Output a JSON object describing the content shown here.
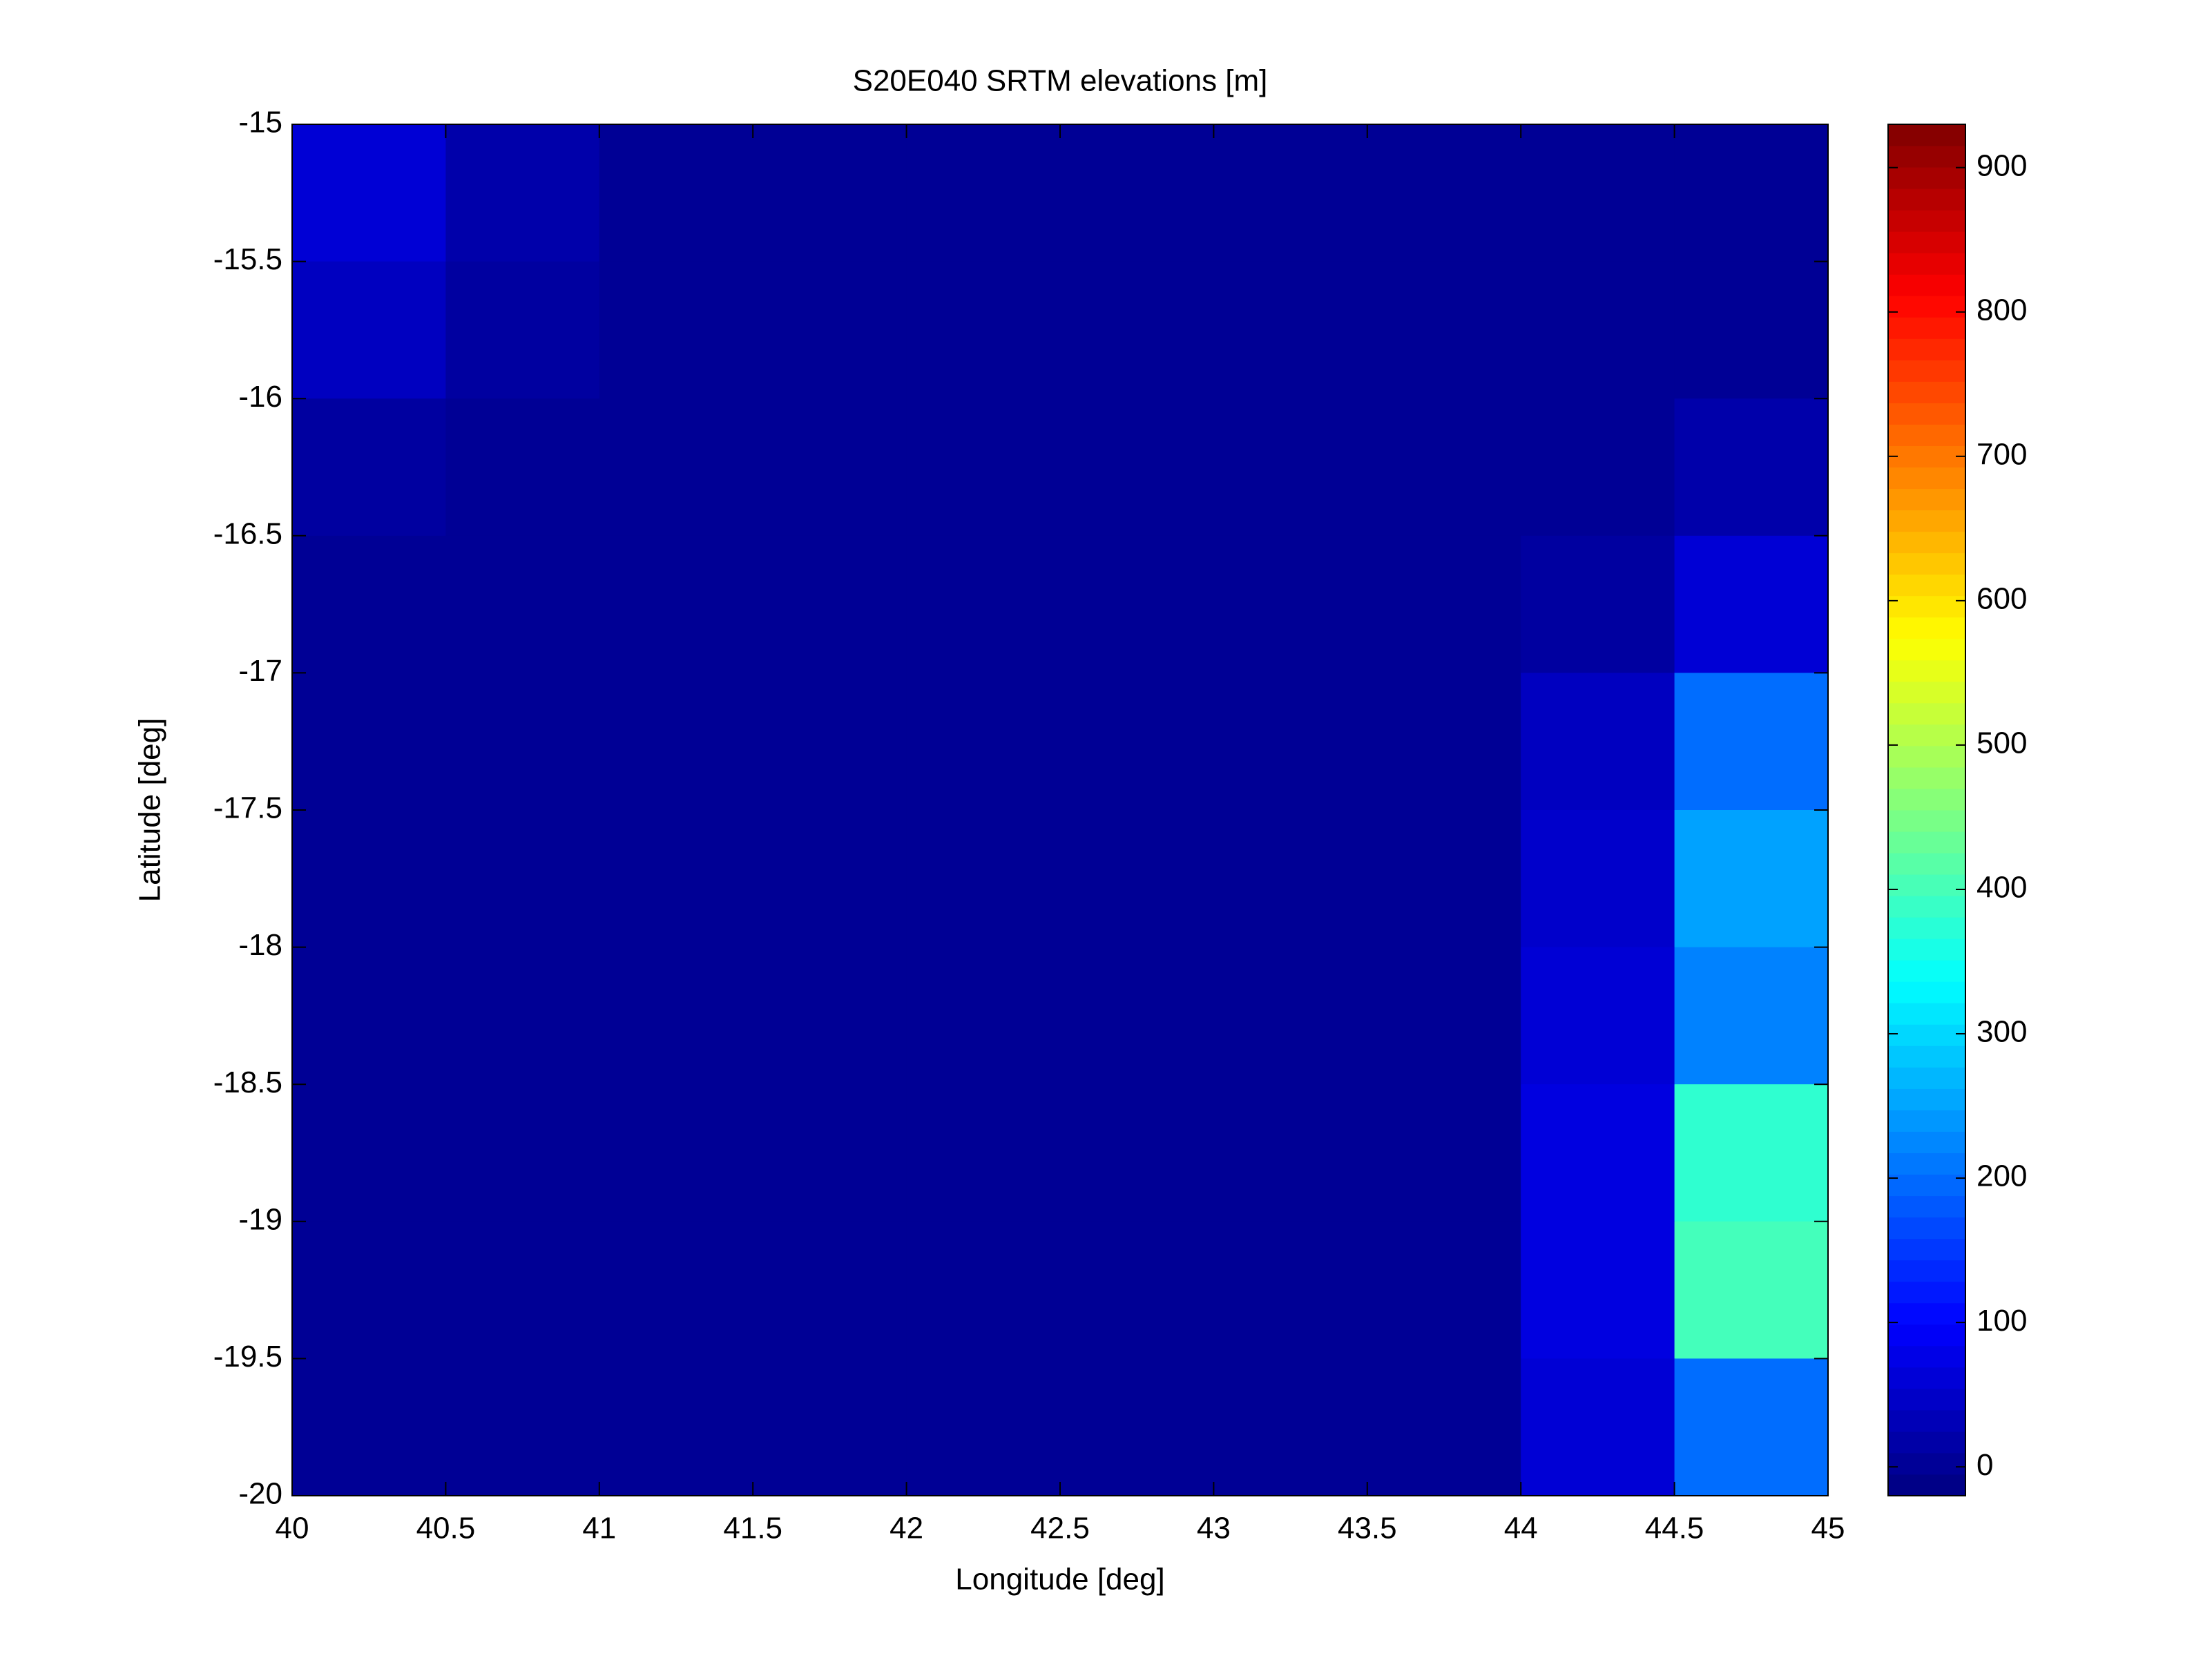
{
  "chart_data": {
    "type": "heatmap",
    "title": "S20E040 SRTM elevations [m]",
    "x_label": "Longitude [deg]",
    "y_label": "Latitude [deg]",
    "x": [
      40,
      40.5,
      41,
      41.5,
      42,
      42.5,
      43,
      43.5,
      44,
      44.5,
      45
    ],
    "y": [
      -15,
      -15.5,
      -16,
      -16.5,
      -17,
      -17.5,
      -18,
      -18.5,
      -19,
      -19.5,
      -20
    ],
    "z": [
      [
        60,
        20,
        0,
        0,
        0,
        0,
        0,
        0,
        0,
        0
      ],
      [
        40,
        10,
        0,
        0,
        0,
        0,
        0,
        0,
        0,
        0
      ],
      [
        10,
        0,
        0,
        0,
        0,
        0,
        0,
        0,
        0,
        20
      ],
      [
        0,
        0,
        0,
        0,
        0,
        0,
        0,
        0,
        10,
        60
      ],
      [
        0,
        0,
        0,
        0,
        0,
        0,
        0,
        0,
        40,
        200
      ],
      [
        0,
        0,
        0,
        0,
        0,
        0,
        0,
        0,
        50,
        250
      ],
      [
        0,
        0,
        0,
        0,
        0,
        0,
        0,
        0,
        60,
        220
      ],
      [
        0,
        0,
        0,
        0,
        0,
        0,
        0,
        0,
        70,
        380
      ],
      [
        0,
        0,
        0,
        0,
        0,
        0,
        0,
        0,
        70,
        400
      ],
      [
        0,
        0,
        0,
        0,
        0,
        0,
        0,
        0,
        60,
        200
      ]
    ],
    "xlim": [
      40,
      45
    ],
    "xticks": [
      40,
      40.5,
      41,
      41.5,
      42,
      42.5,
      43,
      43.5,
      44,
      44.5,
      45
    ],
    "ylim": [
      -20,
      -15
    ],
    "yticks": [
      -15,
      -15.5,
      -16,
      -16.5,
      -17,
      -17.5,
      -18,
      -18.5,
      -19,
      -19.5,
      -20
    ],
    "colormap": "jet",
    "clim": [
      -20,
      930
    ],
    "cticks": [
      0,
      100,
      200,
      300,
      400,
      500,
      600,
      700,
      800,
      900
    ]
  }
}
